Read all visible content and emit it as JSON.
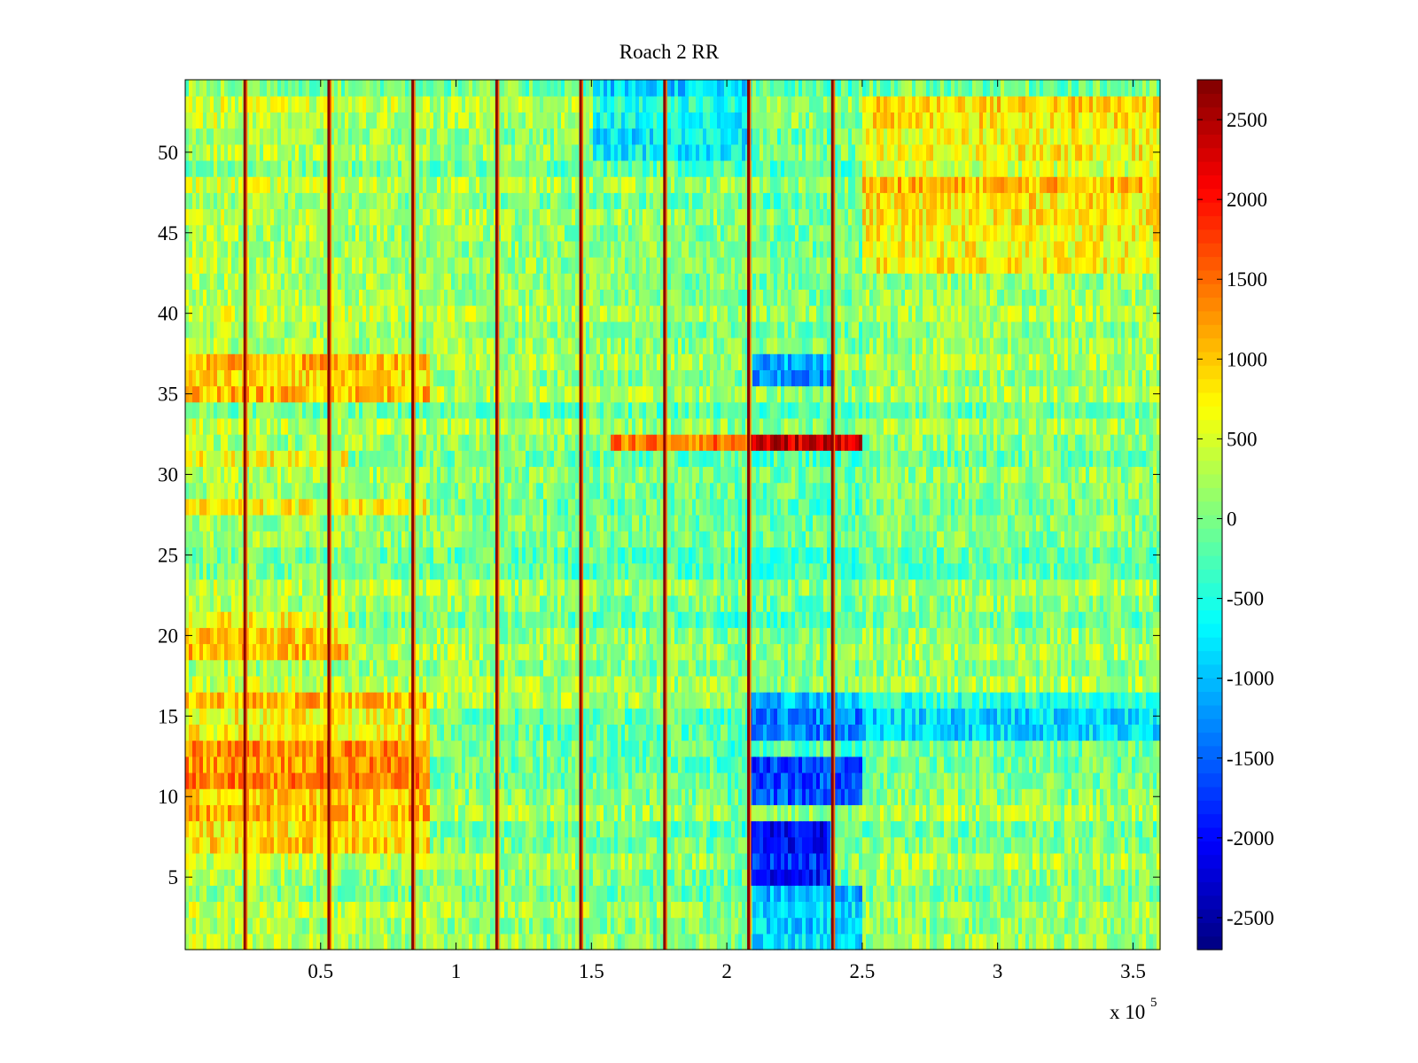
{
  "chart_data": {
    "type": "heatmap",
    "title": "Roach 2 RR",
    "xlabel": "",
    "ylabel": "",
    "x_exponent_label": {
      "base": "x 10",
      "exponent": "5"
    },
    "xlim": [
      0,
      3.6
    ],
    "ylim": [
      0.5,
      54.5
    ],
    "x_ticks": [
      0.5,
      1,
      1.5,
      2,
      2.5,
      3,
      3.5
    ],
    "x_tick_labels": [
      "0.5",
      "1",
      "1.5",
      "2",
      "2.5",
      "3",
      "3.5"
    ],
    "y_ticks": [
      5,
      10,
      15,
      20,
      25,
      30,
      35,
      40,
      45,
      50
    ],
    "y_tick_labels": [
      "5",
      "10",
      "15",
      "20",
      "25",
      "30",
      "35",
      "40",
      "45",
      "50"
    ],
    "n_rows": 54,
    "colormap": "jet",
    "colorbar": {
      "clim": [
        -2700,
        2750
      ],
      "ticks": [
        2500,
        2000,
        1500,
        1000,
        500,
        0,
        -500,
        -1000,
        -1500,
        -2000,
        -2500
      ],
      "tick_labels": [
        "2500",
        "2000",
        "1500",
        "1000",
        "500",
        "0",
        "-500",
        "-1000",
        "-1500",
        "-2000",
        "-2500"
      ]
    },
    "spike_columns_x": [
      0.22,
      0.53,
      0.84,
      1.15,
      1.46,
      1.77,
      2.08,
      2.39
    ],
    "regions": [
      {
        "rows": [
          35,
          37
        ],
        "x": [
          0,
          0.9
        ],
        "value": 900
      },
      {
        "rows": [
          11,
          13
        ],
        "x": [
          0,
          0.9
        ],
        "value": 1500
      },
      {
        "rows": [
          7,
          10
        ],
        "x": [
          0,
          0.9
        ],
        "value": 1000
      },
      {
        "rows": [
          14,
          16
        ],
        "x": [
          0,
          0.9
        ],
        "value": 900
      },
      {
        "rows": [
          19,
          21
        ],
        "x": [
          0,
          0.6
        ],
        "value": 900
      },
      {
        "rows": [
          28,
          28
        ],
        "x": [
          0,
          0.9
        ],
        "value": 900
      },
      {
        "rows": [
          31,
          31
        ],
        "x": [
          0,
          0.6
        ],
        "value": 900
      },
      {
        "rows": [
          32,
          32
        ],
        "x": [
          1.57,
          2.5
        ],
        "value": 1500
      },
      {
        "rows": [
          32,
          32
        ],
        "x": [
          2.08,
          2.5
        ],
        "value": 2400
      },
      {
        "rows": [
          5,
          8
        ],
        "x": [
          2.08,
          2.38
        ],
        "value": -1900
      },
      {
        "rows": [
          10,
          12
        ],
        "x": [
          2.08,
          2.5
        ],
        "value": -1500
      },
      {
        "rows": [
          14,
          16
        ],
        "x": [
          2.08,
          2.5
        ],
        "value": -1100
      },
      {
        "rows": [
          36,
          37
        ],
        "x": [
          2.1,
          2.4
        ],
        "value": -1300
      },
      {
        "rows": [
          43,
          53
        ],
        "x": [
          2.5,
          3.6
        ],
        "value": 700
      },
      {
        "rows": [
          47,
          48
        ],
        "x": [
          2.5,
          3.6
        ],
        "value": 900
      },
      {
        "rows": [
          14,
          16
        ],
        "x": [
          2.5,
          3.6
        ],
        "value": -600
      },
      {
        "rows": [
          1,
          4
        ],
        "x": [
          2.1,
          2.5
        ],
        "value": -900
      },
      {
        "rows": [
          50,
          54
        ],
        "x": [
          1.5,
          2.1
        ],
        "value": -700
      }
    ]
  }
}
